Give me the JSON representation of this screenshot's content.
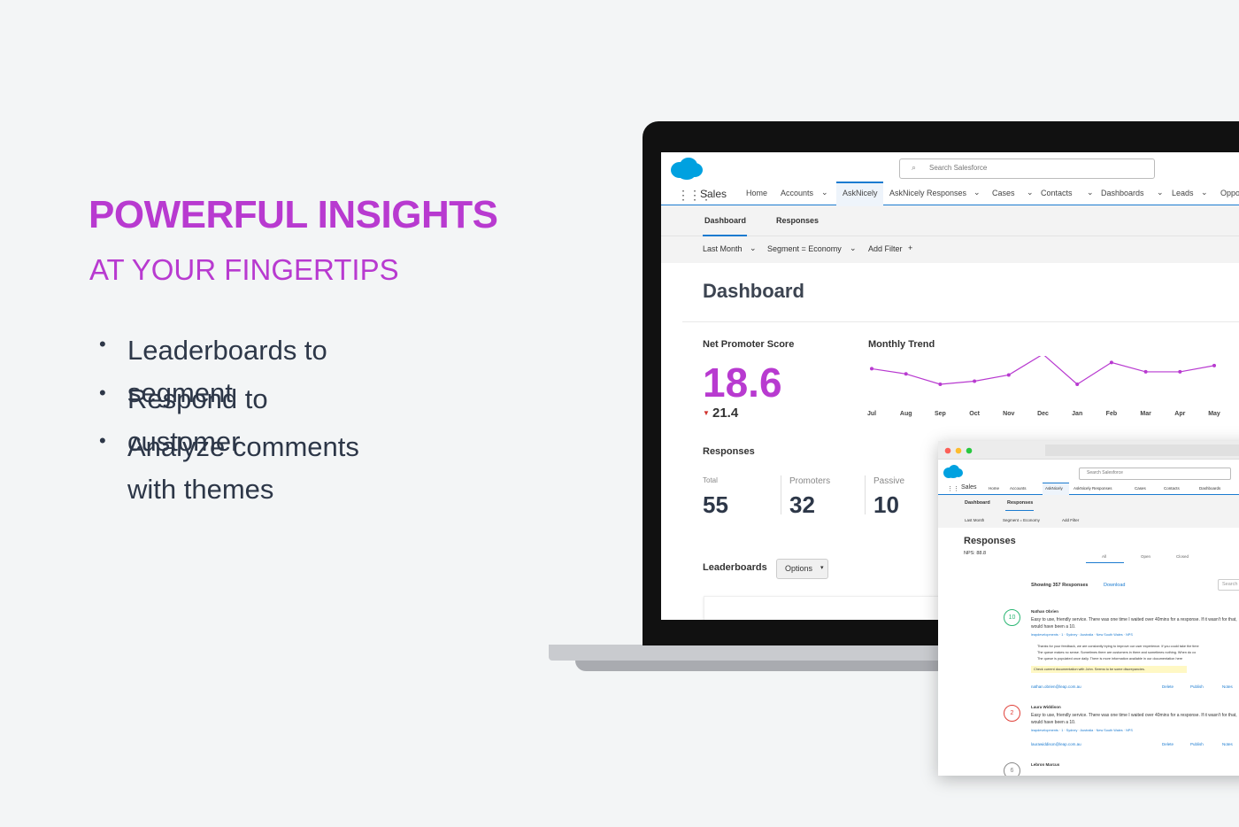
{
  "headline": {
    "title": "POWERFUL INSIGHTS",
    "subtitle": "AT YOUR FINGERTIPS"
  },
  "bullets": [
    "Leaderboards to segment",
    "Respond to customer",
    "Analyze comments with themes"
  ],
  "dashboard": {
    "search": "Search Salesforce",
    "app": "Sales",
    "nav": [
      "Home",
      "Accounts",
      "AskNicely",
      "AskNicely Responses",
      "Cases",
      "Contacts",
      "Dashboards",
      "Leads",
      "Oppo"
    ],
    "tabs": [
      "Dashboard",
      "Responses"
    ],
    "filters": [
      "Last Month",
      "Segment = Economy",
      "Add Filter"
    ],
    "title": "Dashboard",
    "nps_label": "Net Promoter Score",
    "nps": 18.6,
    "nps_previous": 21.4,
    "trend_label": "Monthly Trend",
    "trend": {
      "months": [
        "Jul",
        "Aug",
        "Sep",
        "Oct",
        "Nov",
        "Dec",
        "Jan",
        "Feb",
        "Mar",
        "Apr",
        "May"
      ],
      "values": [
        24,
        19,
        9,
        12,
        18,
        38,
        9,
        30,
        21,
        21,
        27
      ]
    },
    "responses_label": "Responses",
    "stats": [
      {
        "label": "Total",
        "value": 55
      },
      {
        "label": "Promoters",
        "value": 32
      },
      {
        "label": "Passive",
        "value": 10
      }
    ],
    "leaderboards": "Leaderboards",
    "options": "Options"
  },
  "responses_window": {
    "search": "Search Salesforce",
    "app": "Sales",
    "nav": [
      "Home",
      "Accounts",
      "AskNicely",
      "AskNicely Responses",
      "Cases",
      "Contacts",
      "Dashboards"
    ],
    "tabs": [
      "Dashboard",
      "Responses"
    ],
    "filters": [
      "Last Month",
      "Segment = Economy",
      "Add Filter"
    ],
    "title": "Responses",
    "nps": "NPS: 88.8",
    "filter_tabs": [
      "All",
      "Open",
      "Closed"
    ],
    "showing": "Showing 357 Responses",
    "download": "Download",
    "search_box": "Search",
    "items": [
      {
        "score": 10,
        "name": "Nathan Obrien",
        "comment": "Easy to use, friendly service. There was one time I waited over 40mins for a response. If it wasn't for that, would have been a 10.",
        "tags": "leapdevelopments · 1 · Sydney · Australia · New South Wales · NPS",
        "replies": [
          "Thanks for your feedback, we are constantly trying to improve our user experience. If you could take the time",
          "The queue makes no sense. Sometimes there are customers in there and sometimes nothing. When do co",
          "The queue is populated once daily. There is more information available in our documentation here"
        ],
        "note": "Check current documentation with John. Seems to be some discrepancies.",
        "email": "nathan.obrien@leap.com.au",
        "actions": [
          "Delete",
          "Publish",
          "Notes"
        ]
      },
      {
        "score": 2,
        "name": "Laura Widdison",
        "comment": "Easy to use, friendly service. There was one time I waited over 40mins for a response. If it wasn't for that, would have been a 10.",
        "tags": "leapdevelopments · 1 · Sydney · Australia · New South Wales · NPS",
        "email": "laurawiddison@leap.com.au",
        "actions": [
          "Delete",
          "Publish",
          "Notes"
        ]
      },
      {
        "score": 6,
        "name": "Lebron Marcus"
      }
    ]
  }
}
